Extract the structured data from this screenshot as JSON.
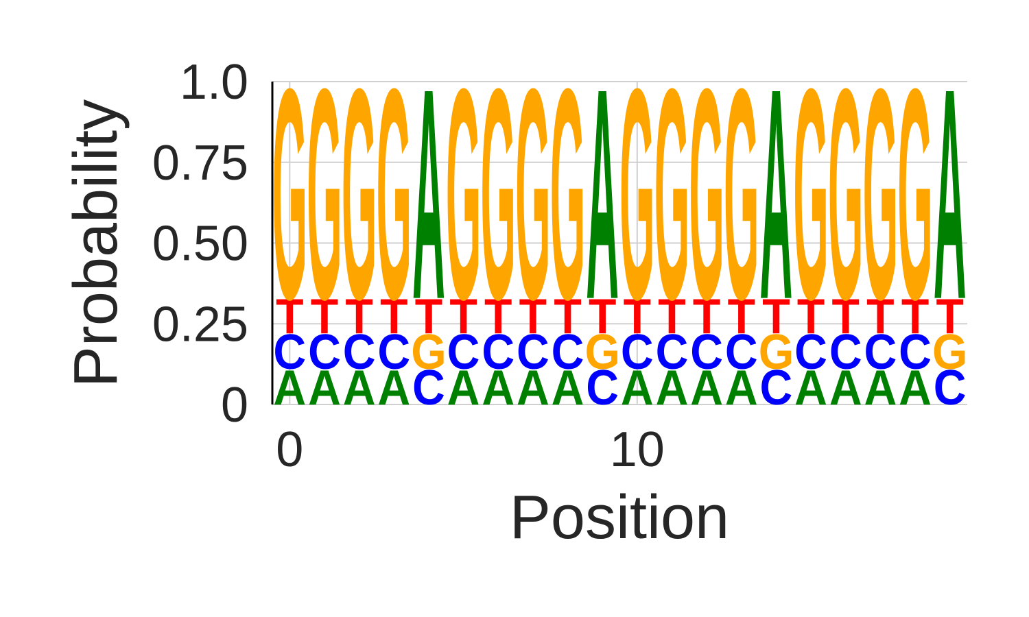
{
  "chart_data": {
    "type": "sequence-logo",
    "title": "",
    "xlabel": "Position",
    "ylabel": "Probability",
    "ylim": [
      0,
      1
    ],
    "xlim": [
      -0.5,
      19.5
    ],
    "y_ticks": [
      {
        "value": 0,
        "label": "0"
      },
      {
        "value": 0.25,
        "label": "0.25"
      },
      {
        "value": 0.5,
        "label": "0.50"
      },
      {
        "value": 0.75,
        "label": "0.75"
      },
      {
        "value": 1.0,
        "label": "1.0"
      }
    ],
    "x_ticks": [
      {
        "value": 0,
        "label": "0"
      },
      {
        "value": 10,
        "label": "10"
      }
    ],
    "grid": true,
    "colors": {
      "A": "#008000",
      "C": "#0000ff",
      "G": "#ffa500",
      "T": "#ff0000"
    },
    "positions": [
      [
        {
          "base": "A",
          "p": 0.11
        },
        {
          "base": "C",
          "p": 0.11
        },
        {
          "base": "T",
          "p": 0.11
        },
        {
          "base": "G",
          "p": 0.67
        }
      ],
      [
        {
          "base": "A",
          "p": 0.11
        },
        {
          "base": "C",
          "p": 0.11
        },
        {
          "base": "T",
          "p": 0.11
        },
        {
          "base": "G",
          "p": 0.67
        }
      ],
      [
        {
          "base": "A",
          "p": 0.11
        },
        {
          "base": "C",
          "p": 0.11
        },
        {
          "base": "T",
          "p": 0.11
        },
        {
          "base": "G",
          "p": 0.67
        }
      ],
      [
        {
          "base": "A",
          "p": 0.11
        },
        {
          "base": "C",
          "p": 0.11
        },
        {
          "base": "T",
          "p": 0.11
        },
        {
          "base": "G",
          "p": 0.67
        }
      ],
      [
        {
          "base": "C",
          "p": 0.11
        },
        {
          "base": "G",
          "p": 0.11
        },
        {
          "base": "T",
          "p": 0.11
        },
        {
          "base": "A",
          "p": 0.67
        }
      ],
      [
        {
          "base": "A",
          "p": 0.11
        },
        {
          "base": "C",
          "p": 0.11
        },
        {
          "base": "T",
          "p": 0.11
        },
        {
          "base": "G",
          "p": 0.67
        }
      ],
      [
        {
          "base": "A",
          "p": 0.11
        },
        {
          "base": "C",
          "p": 0.11
        },
        {
          "base": "T",
          "p": 0.11
        },
        {
          "base": "G",
          "p": 0.67
        }
      ],
      [
        {
          "base": "A",
          "p": 0.11
        },
        {
          "base": "C",
          "p": 0.11
        },
        {
          "base": "T",
          "p": 0.11
        },
        {
          "base": "G",
          "p": 0.67
        }
      ],
      [
        {
          "base": "A",
          "p": 0.11
        },
        {
          "base": "C",
          "p": 0.11
        },
        {
          "base": "T",
          "p": 0.11
        },
        {
          "base": "G",
          "p": 0.67
        }
      ],
      [
        {
          "base": "C",
          "p": 0.11
        },
        {
          "base": "G",
          "p": 0.11
        },
        {
          "base": "T",
          "p": 0.11
        },
        {
          "base": "A",
          "p": 0.67
        }
      ],
      [
        {
          "base": "A",
          "p": 0.11
        },
        {
          "base": "C",
          "p": 0.11
        },
        {
          "base": "T",
          "p": 0.11
        },
        {
          "base": "G",
          "p": 0.67
        }
      ],
      [
        {
          "base": "A",
          "p": 0.11
        },
        {
          "base": "C",
          "p": 0.11
        },
        {
          "base": "T",
          "p": 0.11
        },
        {
          "base": "G",
          "p": 0.67
        }
      ],
      [
        {
          "base": "A",
          "p": 0.11
        },
        {
          "base": "C",
          "p": 0.11
        },
        {
          "base": "T",
          "p": 0.11
        },
        {
          "base": "G",
          "p": 0.67
        }
      ],
      [
        {
          "base": "A",
          "p": 0.11
        },
        {
          "base": "C",
          "p": 0.11
        },
        {
          "base": "T",
          "p": 0.11
        },
        {
          "base": "G",
          "p": 0.67
        }
      ],
      [
        {
          "base": "C",
          "p": 0.11
        },
        {
          "base": "G",
          "p": 0.11
        },
        {
          "base": "T",
          "p": 0.11
        },
        {
          "base": "A",
          "p": 0.67
        }
      ],
      [
        {
          "base": "A",
          "p": 0.11
        },
        {
          "base": "C",
          "p": 0.11
        },
        {
          "base": "T",
          "p": 0.11
        },
        {
          "base": "G",
          "p": 0.67
        }
      ],
      [
        {
          "base": "A",
          "p": 0.11
        },
        {
          "base": "C",
          "p": 0.11
        },
        {
          "base": "T",
          "p": 0.11
        },
        {
          "base": "G",
          "p": 0.67
        }
      ],
      [
        {
          "base": "A",
          "p": 0.11
        },
        {
          "base": "C",
          "p": 0.11
        },
        {
          "base": "T",
          "p": 0.11
        },
        {
          "base": "G",
          "p": 0.67
        }
      ],
      [
        {
          "base": "A",
          "p": 0.11
        },
        {
          "base": "C",
          "p": 0.11
        },
        {
          "base": "T",
          "p": 0.11
        },
        {
          "base": "G",
          "p": 0.67
        }
      ],
      [
        {
          "base": "C",
          "p": 0.11
        },
        {
          "base": "G",
          "p": 0.11
        },
        {
          "base": "T",
          "p": 0.11
        },
        {
          "base": "A",
          "p": 0.67
        }
      ]
    ]
  }
}
